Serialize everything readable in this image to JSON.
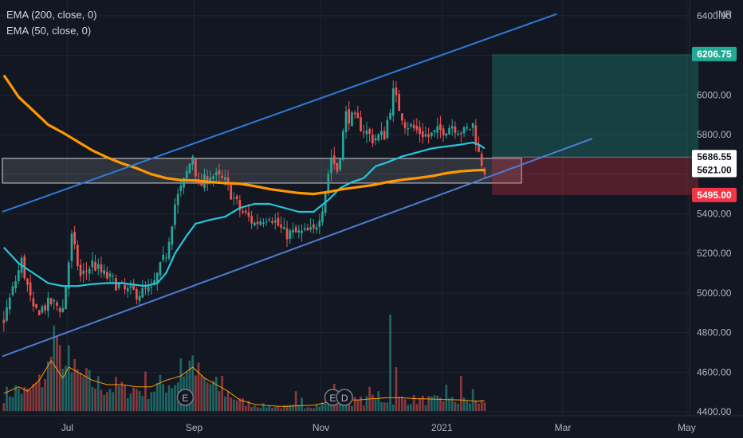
{
  "legend": [
    "EMA (200, close, 0)",
    "EMA (50, close, 0)"
  ],
  "currency": "INR",
  "chart_data": {
    "type": "candlestick",
    "price_axis": {
      "ylim": [
        4380,
        6480
      ],
      "ticks": [
        6400,
        6200,
        6000,
        5800,
        5600,
        5400,
        5200,
        5000,
        4800,
        4600,
        4400
      ],
      "tick_labels": [
        "6400.00",
        "6200.00",
        "6000.00",
        "5800.00",
        "5600.00",
        "5400.00",
        "5200.00",
        "5000.00",
        "4800.00",
        "4600.00",
        "4400.00"
      ]
    },
    "time_axis": {
      "labels": [
        {
          "text": "Jul",
          "bar": 22
        },
        {
          "text": "Sep",
          "bar": 65
        },
        {
          "text": "Nov",
          "bar": 108
        },
        {
          "text": "2021",
          "bar": 149
        },
        {
          "text": "Mar",
          "bar": 190
        },
        {
          "text": "May",
          "bar": 232
        }
      ],
      "total_bars": 250
    },
    "price_labels": [
      {
        "text": "6206.75",
        "value": 6206.75,
        "color": "#22ab94"
      },
      {
        "text": "5686.55",
        "value": 5686.55,
        "color": "#ffffff"
      },
      {
        "text": "5621.00",
        "value": 5621,
        "color": "#ffffff"
      },
      {
        "text": "5495.00",
        "value": 5495,
        "color": "#f23645"
      }
    ],
    "ohlc_anchors": [
      [
        0,
        4870
      ],
      [
        6,
        5160
      ],
      [
        10,
        4900
      ],
      [
        16,
        4950
      ],
      [
        20,
        4920
      ],
      [
        23,
        5280
      ],
      [
        26,
        5080
      ],
      [
        30,
        5150
      ],
      [
        33,
        5100
      ],
      [
        37,
        5060
      ],
      [
        41,
        5010
      ],
      [
        45,
        5000
      ],
      [
        50,
        5010
      ],
      [
        55,
        5200
      ],
      [
        58,
        5450
      ],
      [
        61,
        5560
      ],
      [
        64,
        5700
      ],
      [
        66,
        5530
      ],
      [
        70,
        5600
      ],
      [
        75,
        5560
      ],
      [
        80,
        5420
      ],
      [
        85,
        5350
      ],
      [
        90,
        5400
      ],
      [
        95,
        5300
      ],
      [
        100,
        5300
      ],
      [
        105,
        5310
      ],
      [
        108,
        5440
      ],
      [
        111,
        5690
      ],
      [
        113,
        5620
      ],
      [
        116,
        5900
      ],
      [
        120,
        5860
      ],
      [
        125,
        5780
      ],
      [
        129,
        5800
      ],
      [
        132,
        6010
      ],
      [
        136,
        5860
      ],
      [
        140,
        5820
      ],
      [
        144,
        5790
      ],
      [
        148,
        5820
      ],
      [
        152,
        5850
      ],
      [
        156,
        5810
      ],
      [
        159,
        5850
      ],
      [
        161,
        5700
      ],
      [
        163,
        5620
      ]
    ],
    "ema200": [
      [
        0,
        6100
      ],
      [
        5,
        5990
      ],
      [
        10,
        5920
      ],
      [
        15,
        5850
      ],
      [
        20,
        5810
      ],
      [
        25,
        5765
      ],
      [
        30,
        5720
      ],
      [
        35,
        5685
      ],
      [
        40,
        5655
      ],
      [
        45,
        5630
      ],
      [
        50,
        5600
      ],
      [
        55,
        5580
      ],
      [
        60,
        5570
      ],
      [
        65,
        5568
      ],
      [
        70,
        5560
      ],
      [
        75,
        5555
      ],
      [
        80,
        5552
      ],
      [
        85,
        5540
      ],
      [
        90,
        5525
      ],
      [
        95,
        5515
      ],
      [
        100,
        5505
      ],
      [
        105,
        5500
      ],
      [
        110,
        5510
      ],
      [
        115,
        5525
      ],
      [
        120,
        5535
      ],
      [
        125,
        5545
      ],
      [
        130,
        5560
      ],
      [
        135,
        5572
      ],
      [
        140,
        5580
      ],
      [
        145,
        5590
      ],
      [
        150,
        5605
      ],
      [
        155,
        5615
      ],
      [
        160,
        5620
      ],
      [
        163,
        5621
      ]
    ],
    "ema50": [
      [
        0,
        5230
      ],
      [
        5,
        5150
      ],
      [
        10,
        5100
      ],
      [
        15,
        5050
      ],
      [
        20,
        5035
      ],
      [
        25,
        5035
      ],
      [
        30,
        5045
      ],
      [
        35,
        5050
      ],
      [
        40,
        5050
      ],
      [
        45,
        5040
      ],
      [
        48,
        5035
      ],
      [
        52,
        5050
      ],
      [
        55,
        5100
      ],
      [
        58,
        5200
      ],
      [
        62,
        5290
      ],
      [
        65,
        5350
      ],
      [
        70,
        5370
      ],
      [
        75,
        5385
      ],
      [
        80,
        5430
      ],
      [
        85,
        5450
      ],
      [
        90,
        5450
      ],
      [
        95,
        5430
      ],
      [
        100,
        5410
      ],
      [
        105,
        5410
      ],
      [
        110,
        5470
      ],
      [
        114,
        5530
      ],
      [
        118,
        5560
      ],
      [
        122,
        5580
      ],
      [
        126,
        5640
      ],
      [
        130,
        5660
      ],
      [
        135,
        5690
      ],
      [
        140,
        5710
      ],
      [
        145,
        5730
      ],
      [
        150,
        5740
      ],
      [
        155,
        5750
      ],
      [
        159,
        5760
      ],
      [
        161,
        5750
      ],
      [
        163,
        5730
      ]
    ],
    "volume_anchors": [
      [
        0,
        40
      ],
      [
        5,
        55
      ],
      [
        8,
        45
      ],
      [
        12,
        70
      ],
      [
        16,
        115
      ],
      [
        20,
        75
      ],
      [
        22,
        100
      ],
      [
        26,
        85
      ],
      [
        30,
        70
      ],
      [
        35,
        60
      ],
      [
        40,
        60
      ],
      [
        45,
        55
      ],
      [
        50,
        55
      ],
      [
        55,
        70
      ],
      [
        60,
        80
      ],
      [
        64,
        100
      ],
      [
        68,
        75
      ],
      [
        72,
        60
      ],
      [
        76,
        45
      ],
      [
        80,
        25
      ],
      [
        85,
        15
      ],
      [
        90,
        12
      ],
      [
        95,
        10
      ],
      [
        100,
        12
      ],
      [
        105,
        13
      ],
      [
        110,
        20
      ],
      [
        115,
        25
      ],
      [
        120,
        25
      ],
      [
        125,
        28
      ],
      [
        130,
        30
      ],
      [
        135,
        30
      ],
      [
        140,
        28
      ],
      [
        145,
        27
      ],
      [
        150,
        26
      ],
      [
        155,
        25
      ],
      [
        160,
        22
      ],
      [
        163,
        23
      ]
    ],
    "volume_spikes": [
      [
        17,
        195
      ],
      [
        18,
        170
      ],
      [
        19,
        150
      ],
      [
        22,
        150
      ],
      [
        41,
        60
      ],
      [
        48,
        90
      ],
      [
        60,
        120
      ],
      [
        63,
        115
      ],
      [
        66,
        110
      ],
      [
        74,
        80
      ],
      [
        99,
        45
      ],
      [
        101,
        30
      ],
      [
        112,
        62
      ],
      [
        124,
        55
      ],
      [
        127,
        45
      ],
      [
        131,
        220
      ],
      [
        133,
        100
      ],
      [
        150,
        60
      ],
      [
        155,
        80
      ],
      [
        159,
        50
      ]
    ],
    "trend_channel": {
      "upper": [
        [
          0,
          5410
        ],
        [
          188,
          6410
        ]
      ],
      "lower": [
        [
          0,
          4680
        ],
        [
          200,
          5780
        ]
      ],
      "upper_color": "#2e7bd9",
      "lower_color": "#4f7bd3"
    },
    "highlight_zone": {
      "from_bar": 0,
      "to_bar": 176,
      "top": 5680,
      "bottom": 5555
    },
    "position": {
      "from_bar": 166,
      "to_bar": 236,
      "target": 6206.75,
      "entry": 5686.55,
      "stop": 5495
    },
    "events": [
      {
        "text": "E",
        "bar": 62
      },
      {
        "text": "E",
        "bar": 112
      },
      {
        "text": "D",
        "bar": 116
      }
    ],
    "colors": {
      "up": "#26a69a",
      "down": "#ef5350",
      "ema200": "#ff9800",
      "ema50": "#26c6da",
      "volume_ma": "#ff9800"
    }
  }
}
